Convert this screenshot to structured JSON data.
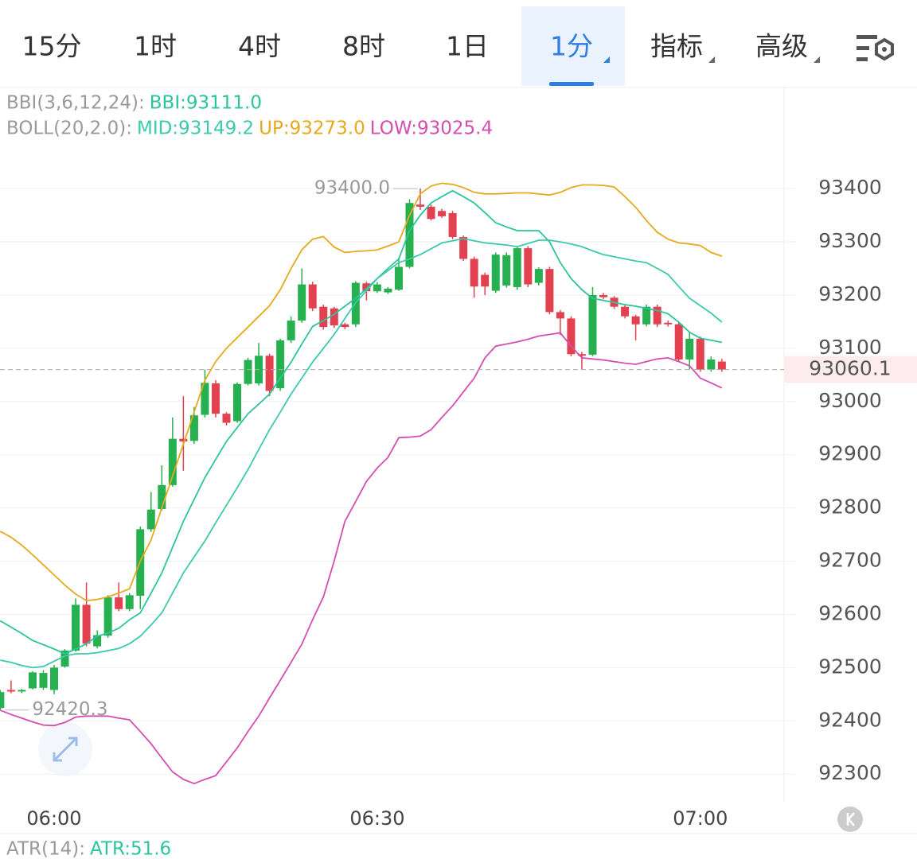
{
  "tabs": [
    "15分",
    "1时",
    "4时",
    "8时",
    "1日",
    "1分",
    "指标",
    "高级"
  ],
  "indicator_labels": [
    "BBI(3,6,12,24):",
    "BOLL(20,2.0):"
  ],
  "sub_indicator": {
    "label": "ATR(14):",
    "value_text": "ATR:51.6"
  },
  "chart_data": {
    "type": "candlestick",
    "categories": [
      null,
      null,
      null,
      null,
      null,
      "06:00",
      null,
      null,
      null,
      null,
      null,
      null,
      null,
      null,
      null,
      null,
      null,
      null,
      null,
      null,
      null,
      null,
      null,
      null,
      null,
      null,
      null,
      null,
      null,
      null,
      null,
      null,
      null,
      null,
      null,
      "06:30",
      null,
      null,
      null,
      null,
      null,
      null,
      null,
      null,
      null,
      null,
      null,
      null,
      null,
      null,
      null,
      null,
      null,
      null,
      null,
      null,
      null,
      null,
      null,
      null,
      null,
      null,
      null,
      null,
      null,
      "07:00",
      null,
      null
    ],
    "open": [
      92424,
      92458,
      92455,
      92461,
      92462,
      92458,
      92502,
      92532,
      92618,
      92540,
      92560,
      92632,
      92610,
      92635,
      92760,
      92798,
      92843,
      92930,
      92926,
      92975,
      93034,
      92977,
      92963,
      93033,
      93034,
      93086,
      93025,
      93115,
      93152,
      93220,
      93178,
      93175,
      93145,
      93145,
      93222,
      93207,
      93205,
      93210,
      93253,
      93370,
      93366,
      93358,
      93354,
      93309,
      93268,
      93238,
      93208,
      93218,
      93215,
      93288,
      93223,
      93249,
      93168,
      93156,
      93089,
      93088,
      93200,
      93195,
      93178,
      93160,
      93145,
      93178,
      93148,
      93145,
      93079,
      93118,
      93060,
      93075
    ],
    "high": [
      92458,
      92476,
      92460,
      92493,
      92495,
      92505,
      92535,
      92630,
      92660,
      92570,
      92636,
      92660,
      92640,
      92765,
      92830,
      92880,
      92970,
      93010,
      92990,
      93060,
      93040,
      92980,
      93036,
      93082,
      93110,
      93090,
      93118,
      93160,
      93250,
      93225,
      93182,
      93178,
      93148,
      93226,
      93225,
      93224,
      93215,
      93270,
      93380,
      93400,
      93370,
      93362,
      93358,
      93312,
      93272,
      93242,
      93280,
      93280,
      93292,
      93292,
      93252,
      93253,
      93172,
      93160,
      93093,
      93215,
      93204,
      93198,
      93182,
      93163,
      93182,
      93182,
      93152,
      93149,
      93130,
      93122,
      93085,
      93080
    ],
    "low": [
      92420.3,
      92452,
      92452,
      92459,
      92458,
      92450,
      92500,
      92530,
      92540,
      92536,
      92556,
      92606,
      92606,
      92610,
      92755,
      92795,
      92840,
      92870,
      92920,
      92970,
      92970,
      92955,
      92960,
      93030,
      93030,
      93010,
      93020,
      93110,
      93148,
      93170,
      93135,
      93138,
      93136,
      93140,
      93190,
      93204,
      93202,
      93208,
      93250,
      93360,
      93340,
      93345,
      93305,
      93264,
      93195,
      93200,
      93204,
      93214,
      93210,
      93215,
      93218,
      93164,
      93125,
      93085,
      93060,
      93085,
      93192,
      93174,
      93156,
      93115,
      93141,
      93140,
      93141,
      93075,
      93060,
      93056,
      93056,
      93056
    ],
    "close": [
      92454,
      92455,
      92458,
      92491,
      92490,
      92500,
      92532,
      92618,
      92545,
      92561,
      92632,
      92610,
      92636,
      92760,
      92797,
      92843,
      92930,
      92925,
      92974,
      93035,
      92977,
      92960,
      93033,
      93078,
      93086,
      93020,
      93115,
      93152,
      93220,
      93175,
      93140,
      93143,
      93140,
      93223,
      93207,
      93220,
      93212,
      93253,
      93373,
      93366,
      93343,
      93348,
      93309,
      93268,
      93216,
      93216,
      93276,
      93275,
      93288,
      93220,
      93249,
      93168,
      93156,
      93089,
      93086,
      93200,
      93196,
      93178,
      93160,
      93145,
      93178,
      93145,
      93145,
      93079,
      93118,
      93060,
      93079,
      93060.1
    ],
    "up_color": "#27b04f",
    "down_color": "#e2414f",
    "series": [
      {
        "name": "BBI:93111.0",
        "group": 0,
        "color": "#2cc49c",
        "values": [
          92588,
          92576,
          92564,
          92551,
          92543,
          92535,
          92526,
          92535,
          92545,
          92559,
          92565,
          92574,
          92590,
          92603,
          92640,
          92678,
          92726,
          92775,
          92816,
          92857,
          92891,
          92925,
          92951,
          92977,
          92995,
          93014,
          93044,
          93074,
          93108,
          93141,
          93152,
          93164,
          93179,
          93194,
          93212,
          93231,
          93250,
          93268,
          93321,
          93350,
          93373,
          93385,
          93396,
          93385,
          93373,
          93355,
          93336,
          93328,
          93321,
          93321,
          93321,
          93300,
          93261,
          93231,
          93210,
          93194,
          93190,
          93186,
          93182,
          93179,
          93175,
          93171,
          93165,
          93149,
          93130,
          93119,
          93115,
          93111
        ]
      },
      {
        "name": "MID:93149.2",
        "group": 1,
        "color": "#3cc9ad",
        "values": [
          92514,
          92510,
          92504,
          92500,
          92502,
          92512,
          92522,
          92526,
          92526,
          92528,
          92532,
          92536,
          92545,
          92559,
          92580,
          92603,
          92640,
          92678,
          92708,
          92738,
          92772,
          92805,
          92838,
          92872,
          92910,
          92947,
          92980,
          93014,
          93044,
          93074,
          93100,
          93126,
          93156,
          93186,
          93208,
          93231,
          93246,
          93261,
          93268,
          93276,
          93287,
          93298,
          93302,
          93306,
          93302,
          93298,
          93296,
          93294,
          93291,
          93297,
          93303,
          93303,
          93300,
          93296,
          93291,
          93283,
          93276,
          93272,
          93268,
          93264,
          93261,
          93250,
          93239,
          93216,
          93194,
          93180,
          93166,
          93149.2
        ]
      },
      {
        "name": "UP:93273.0",
        "group": 1,
        "color": "#e6a91e",
        "values": [
          92756,
          92745,
          92730,
          92712,
          92693,
          92674,
          92655,
          92638,
          92626,
          92628,
          92633,
          92640,
          92648,
          92700,
          92740,
          92800,
          92860,
          92920,
          92980,
          93040,
          93075,
          93100,
          93120,
          93140,
          93160,
          93180,
          93210,
          93250,
          93285,
          93305,
          93310,
          93290,
          93280,
          93282,
          93283,
          93285,
          93292,
          93300,
          93350,
          93390,
          93405,
          93410,
          93408,
          93402,
          93393,
          93390,
          93390,
          93391,
          93392,
          93392,
          93390,
          93388,
          93393,
          93402,
          93407,
          93407,
          93406,
          93403,
          93385,
          93365,
          93340,
          93318,
          93305,
          93298,
          93296,
          93293,
          93280,
          93273
        ]
      },
      {
        "name": "LOW:93025.4",
        "group": 1,
        "color": "#d64db0",
        "values": [
          92420,
          92412,
          92405,
          92398,
          92392,
          92391,
          92397,
          92407,
          92409,
          92409,
          92409,
          92405,
          92402,
          92380,
          92357,
          92330,
          92304,
          92290,
          92282,
          92290,
          92297,
          92323,
          92349,
          92380,
          92409,
          92443,
          92476,
          92510,
          92544,
          92590,
          92633,
          92700,
          92775,
          92812,
          92850,
          92875,
          92895,
          92932,
          92933,
          92935,
          92947,
          92970,
          92992,
          93018,
          93044,
          93082,
          93104,
          93108,
          93112,
          93117,
          93123,
          93126,
          93129,
          93104,
          93082,
          93080,
          93078,
          93075,
          93072,
          93070,
          93075,
          93080,
          93082,
          93075,
          93067,
          93044,
          93035,
          93025.4
        ]
      }
    ],
    "ylim": [
      92248,
      93590
    ],
    "yticks": [
      92300,
      92400,
      92500,
      92600,
      92700,
      92800,
      92900,
      93000,
      93100,
      93200,
      93300,
      93400
    ],
    "grid": true,
    "last_price": 93060.1,
    "max_label": {
      "value": 93400,
      "label": "93400.0"
    },
    "min_label": {
      "value": 92420.3,
      "label": "92420.3"
    }
  }
}
